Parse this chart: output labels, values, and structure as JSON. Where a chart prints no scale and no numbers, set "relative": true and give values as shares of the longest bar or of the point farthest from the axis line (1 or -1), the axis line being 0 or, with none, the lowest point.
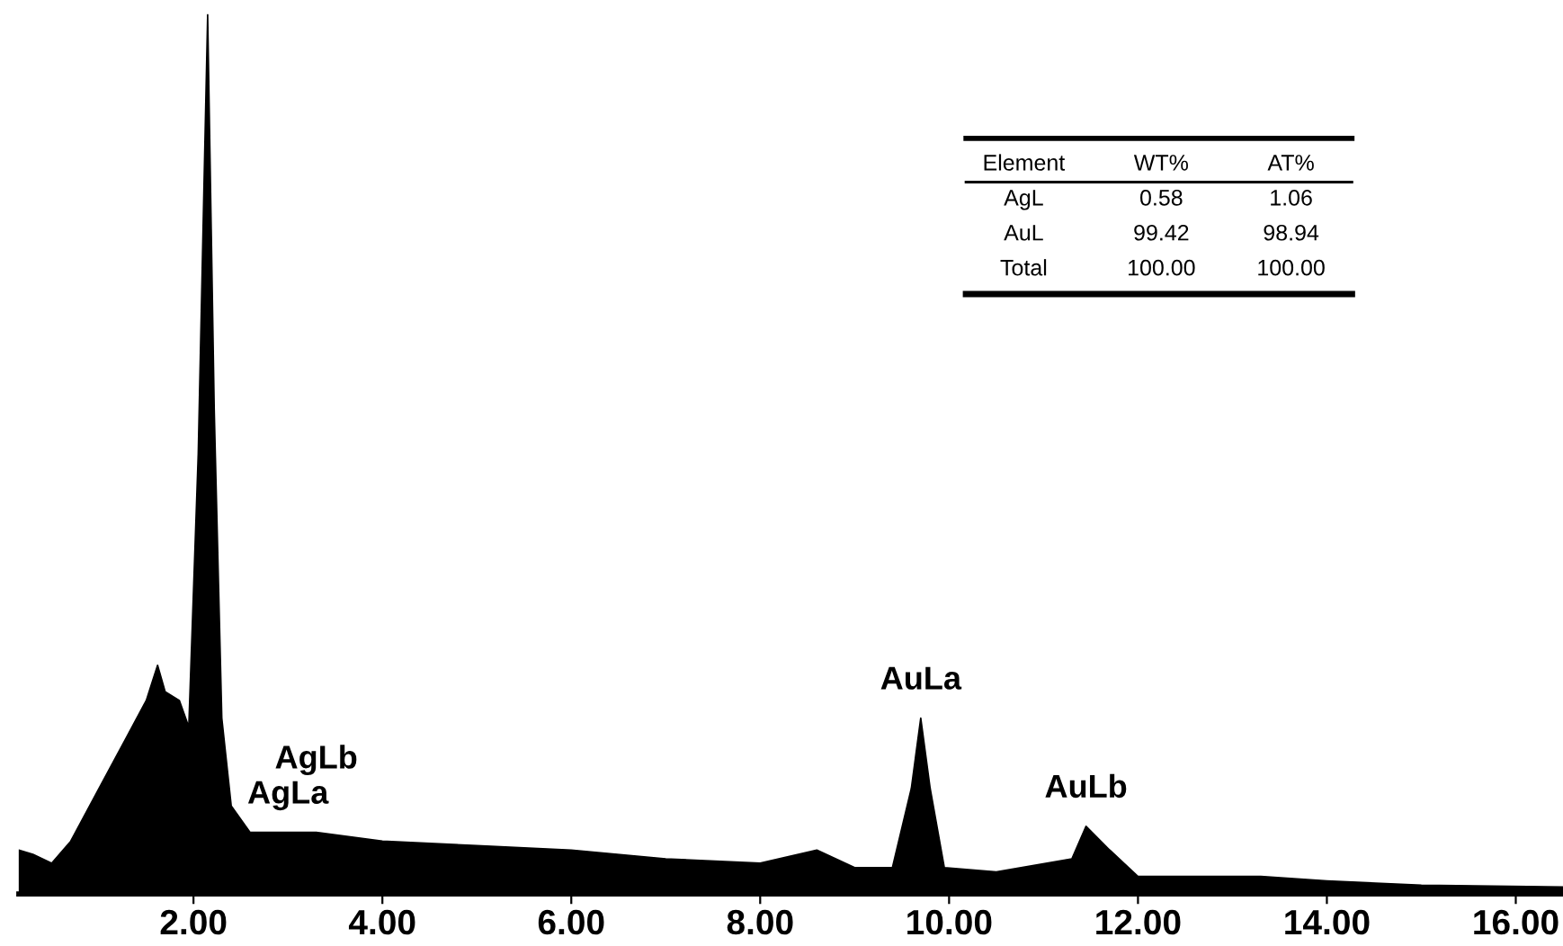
{
  "chart_data": {
    "type": "area",
    "relative": true,
    "x": [
      0.15,
      0.3,
      0.5,
      0.7,
      1.0,
      1.3,
      1.5,
      1.62,
      1.7,
      1.85,
      1.95,
      2.05,
      2.15,
      2.22,
      2.3,
      2.4,
      2.6,
      3.0,
      3.3,
      4.0,
      5.0,
      6.0,
      7.0,
      8.0,
      8.6,
      9.0,
      9.4,
      9.6,
      9.7,
      9.8,
      9.95,
      10.5,
      11.3,
      11.45,
      11.7,
      12.0,
      13.3,
      14.0,
      15.0,
      16.5
    ],
    "series": [
      {
        "color": "#000000",
        "values": [
          0.05,
          0.045,
          0.035,
          0.06,
          0.12,
          0.18,
          0.22,
          0.26,
          0.23,
          0.22,
          0.19,
          0.5,
          1.0,
          0.55,
          0.2,
          0.1,
          0.07,
          0.07,
          0.07,
          0.06,
          0.055,
          0.05,
          0.04,
          0.035,
          0.05,
          0.03,
          0.03,
          0.12,
          0.2,
          0.12,
          0.03,
          0.025,
          0.04,
          0.077,
          0.05,
          0.02,
          0.02,
          0.015,
          0.01,
          0.008
        ]
      }
    ],
    "xlim": [
      0.15,
      16.5
    ],
    "xticks": [
      {
        "value": 2,
        "label": "2.00"
      },
      {
        "value": 4,
        "label": "4.00"
      },
      {
        "value": 6,
        "label": "6.00"
      },
      {
        "value": 8,
        "label": "8.00"
      },
      {
        "value": 10,
        "label": "10.00"
      },
      {
        "value": 12,
        "label": "12.00"
      },
      {
        "value": 14,
        "label": "14.00"
      },
      {
        "value": 16,
        "label": "16.00"
      }
    ],
    "grid": false,
    "legend": false,
    "annotations": [
      {
        "text": "AgLa",
        "x": 3.0,
        "y": 0.07
      },
      {
        "text": "AgLb",
        "x": 3.3,
        "y": 0.07
      },
      {
        "text": "AuLa",
        "x": 9.7,
        "y": 0.2
      },
      {
        "text": "AuLb",
        "x": 11.45,
        "y": 0.077
      },
      "Element",
      "WT%",
      "AT%",
      "AgL",
      "0.58",
      "1.06",
      "AuL",
      "99.42",
      "98.94",
      "Total",
      "100.00",
      "100.00"
    ]
  }
}
